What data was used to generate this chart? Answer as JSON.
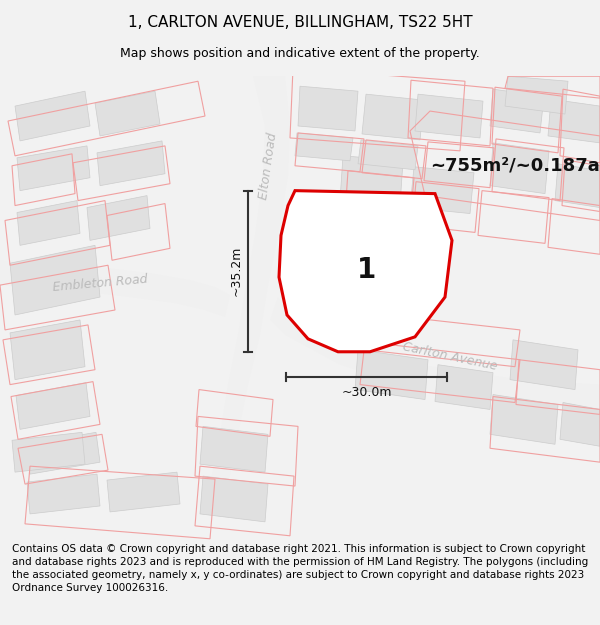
{
  "title": "1, CARLTON AVENUE, BILLINGHAM, TS22 5HT",
  "subtitle": "Map shows position and indicative extent of the property.",
  "footer": "Contains OS data © Crown copyright and database right 2021. This information is subject to Crown copyright and database rights 2023 and is reproduced with the permission of HM Land Registry. The polygons (including the associated geometry, namely x, y co-ordinates) are subject to Crown copyright and database rights 2023 Ordnance Survey 100026316.",
  "area_text": "~755m²/~0.187ac.",
  "label_number": "1",
  "dim_width": "~30.0m",
  "dim_height": "~35.2m",
  "map_bg": "#ffffff",
  "bg_color": "#f2f2f2",
  "title_fontsize": 11,
  "subtitle_fontsize": 9,
  "footer_fontsize": 7.5,
  "plot_line_color": "#f0a0a0",
  "main_red": "#dd0000",
  "building_fill": "#e0e0e0",
  "building_edge": "#cccccc",
  "road_label_color": "#bbbbbb",
  "dim_color": "#333333",
  "road_bg": "#f8f8f8",
  "road_label_fontsize": 9
}
